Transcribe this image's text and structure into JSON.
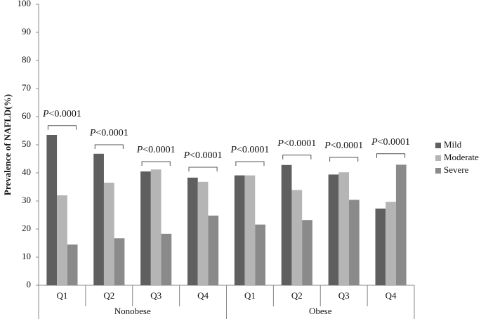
{
  "chart_data": {
    "type": "bar",
    "y_label": "Prevalence of NAFLD(%)",
    "groups": [
      {
        "name": "Nonobese",
        "categories": [
          "Q1",
          "Q2",
          "Q3",
          "Q4"
        ]
      },
      {
        "name": "Obese",
        "categories": [
          "Q1",
          "Q2",
          "Q3",
          "Q4"
        ]
      }
    ],
    "series": [
      {
        "name": "Mild",
        "color": "#5f5f5f",
        "values": [
          53.5,
          46.8,
          40.5,
          38.3,
          39.1,
          42.8,
          39.4,
          27.3
        ]
      },
      {
        "name": "Moderate",
        "color": "#b5b5b5",
        "values": [
          32,
          36.5,
          41.2,
          36.8,
          39.1,
          33.9,
          40.2,
          29.7
        ]
      },
      {
        "name": "Severe",
        "color": "#8a8a8a",
        "values": [
          14.5,
          16.7,
          18.3,
          24.8,
          21.6,
          23.2,
          30.4,
          42.9
        ]
      }
    ],
    "annotations": [
      {
        "text": "P<0.0001",
        "y": 56.8
      },
      {
        "text": "P<0.0001",
        "y": 50
      },
      {
        "text": "P<0.0001",
        "y": 44
      },
      {
        "text": "P<0.0001",
        "y": 42
      },
      {
        "text": "P<0.0001",
        "y": 44
      },
      {
        "text": "P<0.0001",
        "y": 46.3
      },
      {
        "text": "P<0.0001",
        "y": 45.5
      },
      {
        "text": "P<0.0001",
        "y": 46.8
      }
    ],
    "ylim": [
      0,
      100
    ],
    "yticks": [
      0,
      10,
      20,
      30,
      40,
      50,
      60,
      70,
      80,
      90,
      100
    ],
    "grid": false,
    "legend": "right"
  }
}
